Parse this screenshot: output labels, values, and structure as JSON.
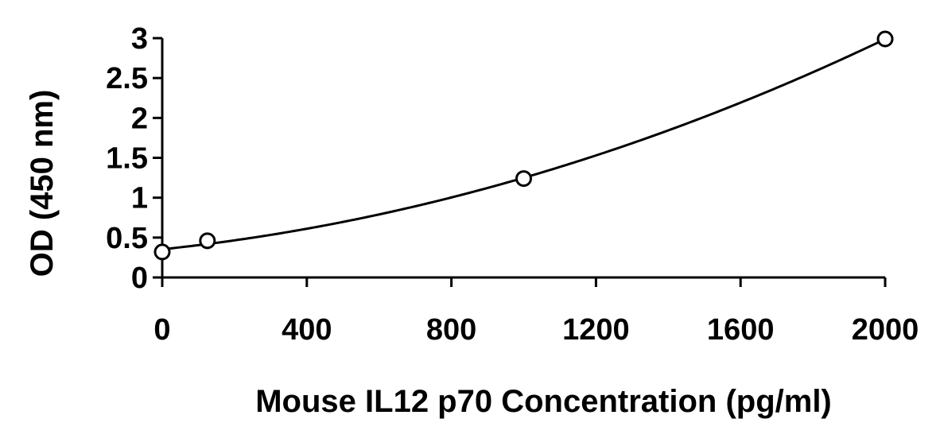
{
  "chart_data": {
    "type": "scatter",
    "title": "",
    "xlabel": "Mouse IL12 p70 Concentration (pg/ml)",
    "ylabel": "OD (450 nm)",
    "xlim": [
      0,
      2000
    ],
    "ylim": [
      0,
      3
    ],
    "x_ticks": [
      0,
      400,
      800,
      1200,
      1600,
      2000
    ],
    "y_ticks": [
      0,
      0.5,
      1,
      1.5,
      2,
      2.5,
      3
    ],
    "x_tick_labels": [
      "0",
      "400",
      "800",
      "1200",
      "1600",
      "2000"
    ],
    "y_tick_labels": [
      "0",
      "0.5",
      "1",
      "1.5",
      "2",
      "2.5",
      "3"
    ],
    "grid": false,
    "legend": "none",
    "series": [
      {
        "points": [
          {
            "x": 0,
            "y": 0.32
          },
          {
            "x": 125,
            "y": 0.46
          },
          {
            "x": 1000,
            "y": 1.24
          },
          {
            "x": 2000,
            "y": 2.99
          }
        ],
        "marker": "open-circle",
        "fit": "polynomial-curve"
      }
    ],
    "colors": {
      "line": "#000000",
      "marker_fill": "#ffffff"
    }
  }
}
